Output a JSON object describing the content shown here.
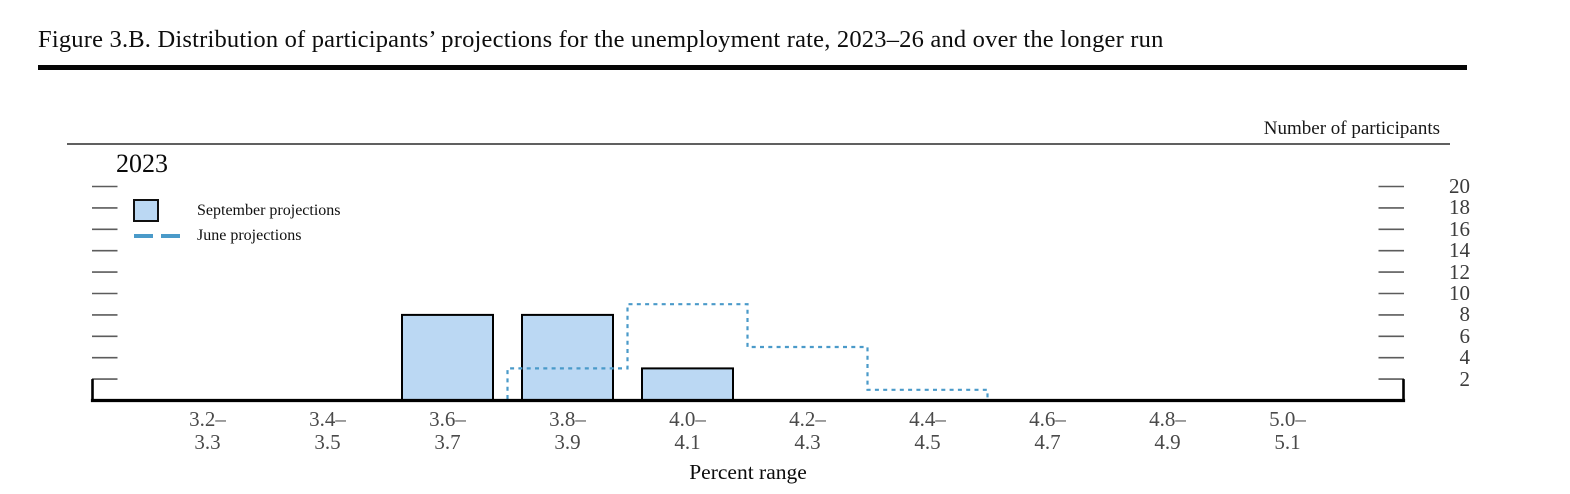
{
  "title": "Figure 3.B. Distribution of participants’ projections for the unemployment rate, 2023–26 and over the longer run",
  "chart": {
    "y_axis_note": "Number of participants",
    "panel_label": "2023",
    "xlabel": "Percent range"
  },
  "legend": {
    "september": "September projections",
    "june": "June projections"
  },
  "colors": {
    "bar_fill": "#bbd8f3",
    "bar_stroke": "#000000",
    "june_line": "#4a9ac9",
    "tick": "#5c5c5c",
    "y_label": "#3c3c3c",
    "x_label": "#4a4a4a"
  },
  "chart_data": {
    "type": "bar",
    "title": "2023",
    "xlabel": "Percent range",
    "ylabel": "Number of participants",
    "categories": [
      "3.2–3.3",
      "3.4–3.5",
      "3.6–3.7",
      "3.8–3.9",
      "4.0–4.1",
      "4.2–4.3",
      "4.4–4.5",
      "4.6–4.7",
      "4.8–4.9",
      "5.0–5.1"
    ],
    "y_ticks": [
      2,
      4,
      6,
      8,
      10,
      12,
      14,
      16,
      18,
      20
    ],
    "ylim": [
      0,
      21
    ],
    "grid": false,
    "legend_position": "upper-left",
    "series": [
      {
        "name": "September projections",
        "style": "filled-bar",
        "values": [
          0,
          0,
          8,
          8,
          3,
          0,
          0,
          0,
          0,
          0
        ]
      },
      {
        "name": "June projections",
        "style": "dashed-step-outline",
        "values": [
          0,
          0,
          0,
          3,
          9,
          5,
          1,
          0,
          0,
          0
        ]
      }
    ]
  }
}
